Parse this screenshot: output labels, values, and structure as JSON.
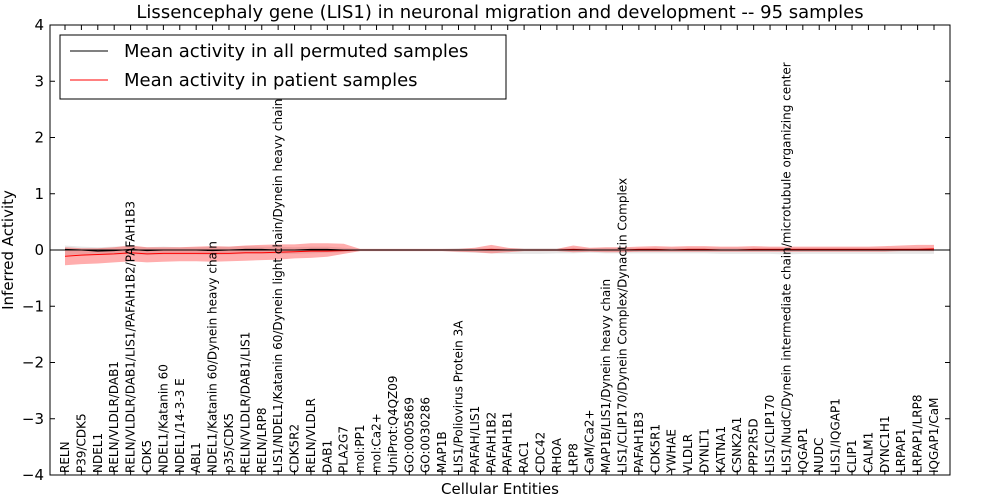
{
  "chart_data": {
    "type": "line",
    "title": "Lissencephaly gene (LIS1) in neuronal migration and development -- 95 samples",
    "xlabel": "Cellular Entities",
    "ylabel": "Inferred Activity",
    "ylim": [
      -4,
      4
    ],
    "yticks": [
      "−4",
      "−3",
      "−2",
      "−1",
      "0",
      "1",
      "2",
      "3",
      "4"
    ],
    "legend": {
      "position": "top-left",
      "entries": [
        {
          "label": "Mean activity in all permuted samples",
          "color": "#000000"
        },
        {
          "label": "Mean activity in patient samples",
          "color": "#ff0000"
        }
      ]
    },
    "categories": [
      "RELN",
      "P39/CDK5",
      "NDEL1",
      "RELN/VLDLR/DAB1",
      "RELN/VLDLR/DAB1/LIS1/PAFAH1B2/PAFAH1B3",
      "CDK5",
      "NDEL1/Katanin 60",
      "NDEL1/14-3-3 E",
      "ABL1",
      "NDEL1/Katanin 60/Dynein heavy chain",
      "p35/CDK5",
      "RELN/VLDLR/DAB1/LIS1",
      "RELN/LRP8",
      "LIS1/NDEL1/Katanin 60/Dynein light chain/Dynein heavy chain",
      "CDK5R2",
      "RELN/VLDLR",
      "DAB1",
      "PLA2G7",
      "mol:PP1",
      "mol:Ca2+",
      "UniProt:Q4QZ09",
      "GO:0005869",
      "GO:0030286",
      "MAP1B",
      "LIS1/Poliovirus Protein 3A",
      "PAFAH/LIS1",
      "PAFAH1B2",
      "PAFAH1B1",
      "RAC1",
      "CDC42",
      "RHOA",
      "LRP8",
      "CaM/Ca2+",
      "MAP1B/LIS1/Dynein heavy chain",
      "LIS1/CLIP170/Dynein Complex/Dynactin Complex",
      "PAFAH1B3",
      "CDK5R1",
      "YWHAE",
      "VLDLR",
      "DYNLT1",
      "KATNA1",
      "CSNK2A1",
      "PPP2R5D",
      "LIS1/CLIP170",
      "LIS1/NudC/Dynein intermediate chain/microtubule organizing center",
      "IQGAP1",
      "NUDC",
      "LIS1/IQGAP1",
      "CLIP1",
      "CALM1",
      "DYNC1H1",
      "LRPAP1",
      "LRPAP1/LRP8",
      "IQGAP1/CaM"
    ],
    "series": [
      {
        "name": "Mean activity in all permuted samples",
        "color": "#000000",
        "values": [
          0.01,
          0.0,
          -0.02,
          -0.01,
          0.01,
          -0.01,
          0.0,
          0.0,
          0.0,
          -0.01,
          0.0,
          0.01,
          0.01,
          0.0,
          0.0,
          0.01,
          0.01,
          0.0,
          0.0,
          0.0,
          0.0,
          0.0,
          0.0,
          0.0,
          0.0,
          0.0,
          0.0,
          0.0,
          0.0,
          0.0,
          0.0,
          0.0,
          0.0,
          0.0,
          0.0,
          0.0,
          0.0,
          0.0,
          0.0,
          0.0,
          0.0,
          0.0,
          0.0,
          0.0,
          0.0,
          0.0,
          0.0,
          0.0,
          0.0,
          0.0,
          0.0,
          0.0,
          0.0,
          0.0
        ],
        "band_upper": [
          0.08,
          0.06,
          0.05,
          0.06,
          0.07,
          0.05,
          0.06,
          0.05,
          0.05,
          0.06,
          0.06,
          0.07,
          0.06,
          0.06,
          0.05,
          0.06,
          0.06,
          0.04,
          0.02,
          0.02,
          0.02,
          0.02,
          0.02,
          0.02,
          0.03,
          0.03,
          0.03,
          0.03,
          0.03,
          0.03,
          0.03,
          0.04,
          0.03,
          0.04,
          0.04,
          0.03,
          0.04,
          0.04,
          0.04,
          0.04,
          0.04,
          0.04,
          0.04,
          0.04,
          0.04,
          0.04,
          0.04,
          0.04,
          0.04,
          0.04,
          0.04,
          0.04,
          0.04,
          0.04
        ],
        "band_lower": [
          -0.09,
          -0.08,
          -0.09,
          -0.08,
          -0.07,
          -0.09,
          -0.08,
          -0.08,
          -0.08,
          -0.09,
          -0.08,
          -0.07,
          -0.07,
          -0.07,
          -0.07,
          -0.06,
          -0.05,
          -0.04,
          -0.02,
          -0.02,
          -0.02,
          -0.02,
          -0.02,
          -0.02,
          -0.04,
          -0.05,
          -0.06,
          -0.07,
          -0.07,
          -0.07,
          -0.06,
          -0.06,
          -0.05,
          -0.06,
          -0.06,
          -0.06,
          -0.06,
          -0.06,
          -0.06,
          -0.06,
          -0.07,
          -0.07,
          -0.07,
          -0.07,
          -0.08,
          -0.07,
          -0.07,
          -0.07,
          -0.07,
          -0.07,
          -0.07,
          -0.07,
          -0.07,
          -0.07
        ]
      },
      {
        "name": "Mean activity in patient samples",
        "color": "#ff0000",
        "values": [
          -0.11,
          -0.09,
          -0.08,
          -0.07,
          -0.05,
          -0.07,
          -0.06,
          -0.06,
          -0.06,
          -0.06,
          -0.06,
          -0.05,
          -0.05,
          -0.04,
          -0.03,
          -0.02,
          -0.02,
          -0.01,
          0.0,
          0.0,
          0.0,
          0.0,
          0.0,
          0.0,
          0.0,
          0.0,
          0.01,
          0.0,
          0.0,
          0.0,
          0.0,
          0.01,
          0.0,
          0.0,
          0.0,
          0.01,
          0.01,
          0.0,
          0.01,
          0.01,
          0.0,
          0.0,
          0.01,
          0.01,
          0.01,
          0.01,
          0.01,
          0.01,
          0.01,
          0.01,
          0.01,
          0.01,
          0.01,
          0.02
        ],
        "band_upper": [
          0.05,
          0.03,
          0.03,
          0.05,
          0.08,
          0.05,
          0.05,
          0.05,
          0.06,
          0.07,
          0.06,
          0.08,
          0.09,
          0.1,
          0.1,
          0.12,
          0.12,
          0.11,
          0.02,
          0.02,
          0.02,
          0.02,
          0.02,
          0.02,
          0.02,
          0.04,
          0.09,
          0.04,
          0.02,
          0.02,
          0.02,
          0.08,
          0.04,
          0.05,
          0.05,
          0.06,
          0.07,
          0.06,
          0.07,
          0.07,
          0.06,
          0.06,
          0.07,
          0.06,
          0.06,
          0.06,
          0.06,
          0.06,
          0.06,
          0.06,
          0.07,
          0.08,
          0.09,
          0.09
        ],
        "band_lower": [
          -0.27,
          -0.25,
          -0.24,
          -0.22,
          -0.2,
          -0.22,
          -0.21,
          -0.2,
          -0.2,
          -0.21,
          -0.2,
          -0.19,
          -0.18,
          -0.17,
          -0.15,
          -0.14,
          -0.12,
          -0.07,
          -0.02,
          -0.02,
          -0.02,
          -0.02,
          -0.02,
          -0.02,
          -0.03,
          -0.04,
          -0.06,
          -0.04,
          -0.02,
          -0.02,
          -0.02,
          -0.04,
          -0.03,
          -0.04,
          -0.04,
          -0.03,
          -0.03,
          -0.03,
          -0.03,
          -0.03,
          -0.03,
          -0.03,
          -0.03,
          -0.03,
          -0.03,
          -0.03,
          -0.03,
          -0.03,
          -0.03,
          -0.03,
          -0.03,
          -0.02,
          -0.02,
          -0.02
        ]
      }
    ]
  }
}
